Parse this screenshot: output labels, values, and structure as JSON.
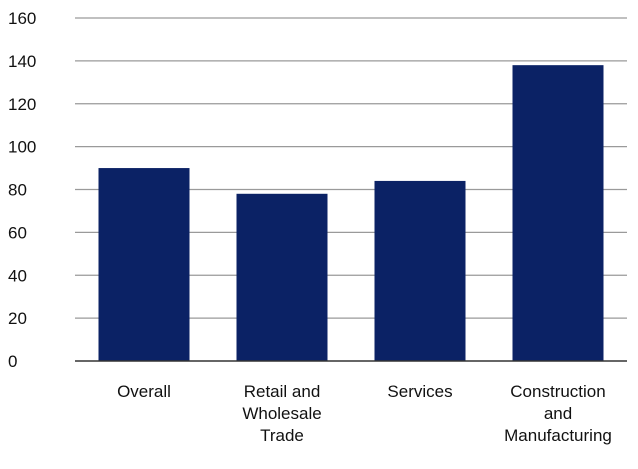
{
  "chart_data": {
    "type": "bar",
    "title": "",
    "xlabel": "",
    "ylabel": "",
    "categories": [
      [
        "Overall"
      ],
      [
        "Retail and",
        "Wholesale",
        "Trade"
      ],
      [
        "Services"
      ],
      [
        "Construction",
        "and",
        "Manufacturing"
      ]
    ],
    "values": [
      90,
      78,
      84,
      138
    ],
    "ylim": [
      0,
      160
    ],
    "yticks": [
      0,
      20,
      40,
      60,
      80,
      100,
      120,
      140,
      160
    ],
    "grid": true,
    "legend": "none",
    "colors": {
      "bar": "#0b2265",
      "grid": "#9a9a9a",
      "axis": "#333333",
      "text": "#111111"
    }
  }
}
